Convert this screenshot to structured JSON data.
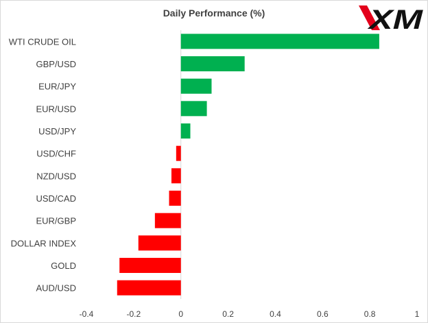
{
  "chart_data": {
    "type": "bar",
    "orientation": "horizontal",
    "title": "Daily Performance (%)",
    "categories": [
      "WTI CRUDE OIL",
      "GBP/USD",
      "EUR/JPY",
      "EUR/USD",
      "USD/JPY",
      "USD/CHF",
      "NZD/USD",
      "USD/CAD",
      "EUR/GBP",
      "DOLLAR INDEX",
      "GOLD",
      "AUD/USD"
    ],
    "values": [
      0.84,
      0.27,
      0.13,
      0.11,
      0.04,
      -0.02,
      -0.04,
      -0.05,
      -0.11,
      -0.18,
      -0.26,
      -0.27
    ],
    "xlim": [
      -0.4,
      1
    ],
    "xticks": [
      "-0.4",
      "-0.2",
      "0",
      "0.2",
      "0.4",
      "0.6",
      "0.8",
      "1"
    ],
    "grid": false,
    "colors": {
      "positive": "#00b050",
      "negative": "#ff0000",
      "axis": "#d9d9d9",
      "text": "#404040"
    }
  },
  "logo": {
    "text": "XM",
    "color": "#e3001b"
  }
}
